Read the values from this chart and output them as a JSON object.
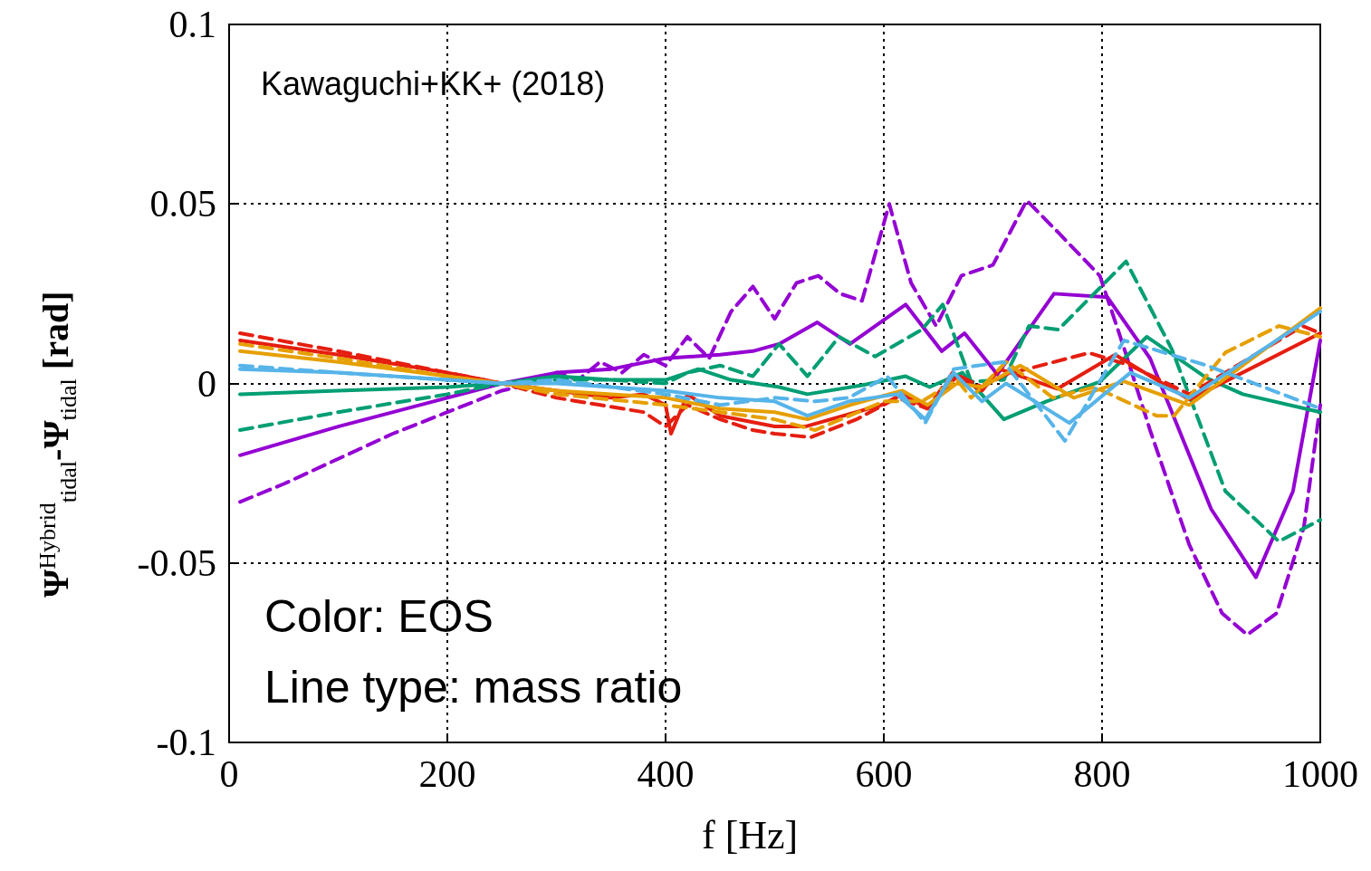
{
  "chart_data": {
    "type": "line",
    "xlabel": "f [Hz]",
    "ylabel": "Ψ$^{Hybrid}$$_{tidal}$-Ψ$_{tidal}$ [rad]",
    "annotations": [
      "Kawaguchi+KK+ (2018)",
      "Color: EOS",
      "Line type: mass ratio"
    ],
    "xlim": [
      0,
      1000
    ],
    "xticks": [
      0,
      200,
      400,
      600,
      800,
      1000
    ],
    "ylim": [
      -0.1,
      0.1
    ],
    "yticks": [
      -0.1,
      -0.05,
      0,
      0.05,
      0.1
    ],
    "grid": true,
    "marker": "none",
    "series": [
      {
        "color": "#9400d3",
        "line_style": "dashed",
        "x": [
          10,
          50,
          100,
          150,
          200,
          250,
          280,
          300,
          320,
          340,
          360,
          380,
          400,
          420,
          440,
          460,
          480,
          500,
          520,
          540,
          560,
          580,
          605,
          625,
          648,
          671,
          700,
          731,
          760,
          798,
          820,
          844,
          880,
          910,
          933,
          960,
          985,
          1000
        ],
        "values": [
          -0.033,
          -0.028,
          -0.021,
          -0.014,
          -0.008,
          -0.002,
          0.0,
          0.003,
          0.001,
          0.006,
          0.003,
          0.008,
          0.005,
          0.013,
          0.007,
          0.02,
          0.027,
          0.018,
          0.028,
          0.03,
          0.025,
          0.023,
          0.05,
          0.028,
          0.016,
          0.03,
          0.033,
          0.051,
          0.042,
          0.03,
          0.01,
          -0.013,
          -0.045,
          -0.064,
          -0.07,
          -0.064,
          -0.04,
          -0.006
        ]
      },
      {
        "color": "#9400d3",
        "line_style": "solid",
        "x": [
          10,
          100,
          200,
          250,
          300,
          350,
          400,
          450,
          480,
          504,
          539,
          569,
          620,
          653,
          674,
          704,
          756,
          805,
          844,
          900,
          941,
          975,
          1000
        ],
        "values": [
          -0.02,
          -0.012,
          -0.004,
          0.0,
          0.003,
          0.004,
          0.007,
          0.008,
          0.009,
          0.011,
          0.017,
          0.011,
          0.022,
          0.009,
          0.014,
          0.0025,
          0.025,
          0.024,
          0.007,
          -0.035,
          -0.054,
          -0.03,
          0.012
        ]
      },
      {
        "color": "#009e73",
        "line_style": "dashed",
        "x": [
          10,
          100,
          200,
          250,
          300,
          350,
          400,
          420,
          450,
          480,
          504,
          530,
          559,
          592,
          635,
          654,
          680,
          710,
          733,
          760,
          822,
          864,
          913,
          962,
          1000
        ],
        "values": [
          -0.013,
          -0.008,
          -0.003,
          0.0,
          0.001,
          0.001,
          0.0,
          0.003,
          0.005,
          0.002,
          0.011,
          0.002,
          0.013,
          0.0075,
          0.015,
          0.022,
          0.0005,
          0.001,
          0.016,
          0.015,
          0.034,
          0.0095,
          -0.03,
          -0.044,
          -0.038
        ]
      },
      {
        "color": "#009e73",
        "line_style": "solid",
        "x": [
          10,
          100,
          200,
          250,
          300,
          350,
          400,
          430,
          460,
          504,
          530,
          580,
          620,
          642,
          672,
          710,
          749,
          798,
          841,
          896,
          929,
          1000
        ],
        "values": [
          -0.003,
          -0.002,
          -0.001,
          0.0,
          0.002,
          0.001,
          0.001,
          0.004,
          0.001,
          -0.001,
          -0.003,
          -0.0005,
          0.002,
          -0.001,
          0.003,
          -0.01,
          -0.005,
          0.0005,
          0.013,
          0.0015,
          -0.003,
          -0.008
        ]
      },
      {
        "color": "#e51e10",
        "line_style": "dashed",
        "x": [
          10,
          100,
          200,
          250,
          300,
          340,
          380,
          400,
          420,
          450,
          480,
          500,
          533,
          575,
          612,
          640,
          663,
          690,
          712,
          788,
          826,
          880,
          984,
          1000
        ],
        "values": [
          0.014,
          0.009,
          0.003,
          0.0,
          -0.004,
          -0.006,
          -0.008,
          -0.012,
          -0.006,
          -0.01,
          -0.013,
          -0.014,
          -0.015,
          -0.01,
          -0.004,
          -0.007,
          0.003,
          -0.001,
          0.0025,
          0.0085,
          0.005,
          -0.003,
          0.016,
          0.014
        ]
      },
      {
        "color": "#e51e10",
        "line_style": "solid",
        "x": [
          10,
          100,
          200,
          250,
          300,
          350,
          380,
          400,
          405,
          420,
          450,
          500,
          528,
          598,
          617,
          640,
          667,
          690,
          706,
          759,
          812,
          880,
          1000
        ],
        "values": [
          0.012,
          0.008,
          0.003,
          0.0,
          -0.002,
          -0.004,
          -0.003,
          -0.006,
          -0.014,
          -0.003,
          -0.009,
          -0.012,
          -0.012,
          -0.006,
          -0.003,
          -0.007,
          0.002,
          -0.002,
          0.004,
          -0.0015,
          0.008,
          -0.0045,
          0.014
        ]
      },
      {
        "color": "#e69f00",
        "line_style": "dashed",
        "x": [
          10,
          100,
          200,
          250,
          300,
          400,
          450,
          500,
          537,
          600,
          635,
          667,
          680,
          712,
          755,
          793,
          850,
          866,
          913,
          962,
          1000
        ],
        "values": [
          0.011,
          0.007,
          0.002,
          0.0,
          -0.003,
          -0.006,
          -0.008,
          -0.01,
          -0.013,
          -0.005,
          -0.005,
          0.001,
          -0.004,
          0.006,
          -0.004,
          -0.001,
          -0.009,
          -0.009,
          0.0086,
          0.016,
          0.013
        ]
      },
      {
        "color": "#e69f00",
        "line_style": "solid",
        "x": [
          10,
          100,
          200,
          250,
          300,
          350,
          400,
          450,
          500,
          530,
          569,
          617,
          640,
          667,
          690,
          725,
          774,
          820,
          880,
          1000
        ],
        "values": [
          0.009,
          0.006,
          0.002,
          0.0,
          -0.002,
          -0.003,
          -0.004,
          -0.007,
          -0.008,
          -0.01,
          -0.006,
          -0.002,
          -0.006,
          0.0,
          -0.001,
          0.005,
          -0.004,
          0.0006,
          -0.006,
          0.021
        ]
      },
      {
        "color": "#56b4e9",
        "line_style": "solid",
        "x": [
          10,
          100,
          200,
          250,
          300,
          350,
          400,
          450,
          500,
          530,
          568,
          612,
          638,
          664,
          690,
          712,
          770,
          826,
          880,
          1000
        ],
        "values": [
          0.004,
          0.003,
          0.001,
          0.0,
          0.0,
          -0.001,
          -0.002,
          -0.004,
          -0.005,
          -0.009,
          -0.005,
          -0.003,
          -0.01,
          0.003,
          -0.005,
          0.0,
          -0.011,
          0.003,
          -0.004,
          0.02
        ]
      },
      {
        "color": "#56b4e9",
        "line_style": "dashed",
        "x": [
          10,
          100,
          200,
          250,
          300,
          400,
          450,
          500,
          537,
          568,
          603,
          638,
          664,
          710,
          766,
          820,
          896,
          1000
        ],
        "values": [
          0.005,
          0.003,
          0.001,
          0.0,
          0.001,
          -0.003,
          -0.006,
          -0.004,
          -0.005,
          -0.004,
          0.002,
          -0.011,
          0.004,
          0.006,
          -0.016,
          0.012,
          0.005,
          -0.007
        ]
      }
    ]
  }
}
